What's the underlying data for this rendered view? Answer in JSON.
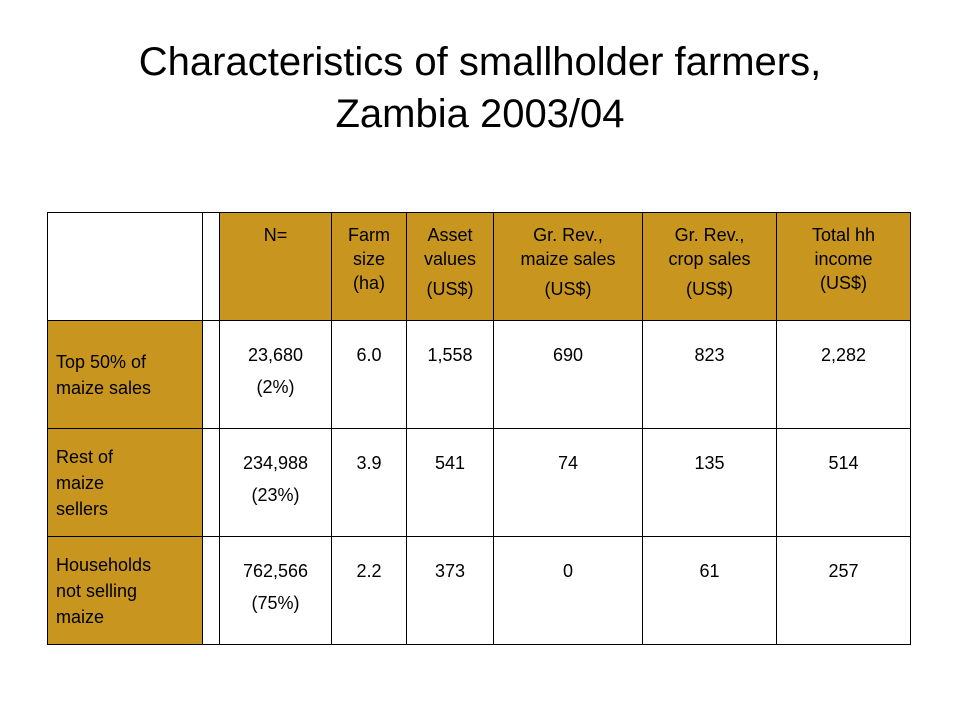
{
  "slide": {
    "title_line1": "Characteristics of smallholder farmers,",
    "title_line2": "Zambia 2003/04"
  },
  "table": {
    "headers": {
      "n": "N=",
      "farm_size": [
        "Farm",
        "size",
        "(ha)"
      ],
      "asset_values": [
        "Asset",
        "values",
        "(US$)"
      ],
      "gr_rev_maize": [
        "Gr. Rev.,",
        "maize sales",
        "(US$)"
      ],
      "gr_rev_crop": [
        "Gr. Rev.,",
        "crop sales",
        "(US$)"
      ],
      "total_hh_income": [
        "Total hh",
        "income",
        "(US$)"
      ]
    },
    "rows": [
      {
        "label": [
          "Top 50% of",
          "maize sales"
        ],
        "n": "23,680",
        "n_pct": "(2%)",
        "farm_size": "6.0",
        "asset_values": "1,558",
        "gr_rev_maize": "690",
        "gr_rev_crop": "823",
        "total_hh_income": "2,282"
      },
      {
        "label": [
          "Rest of",
          "maize",
          "sellers"
        ],
        "n": "234,988",
        "n_pct": "(23%)",
        "farm_size": "3.9",
        "asset_values": "541",
        "gr_rev_maize": "74",
        "gr_rev_crop": "135",
        "total_hh_income": "514"
      },
      {
        "label": [
          "Households",
          "not selling",
          "maize"
        ],
        "n": "762,566",
        "n_pct": "(75%)",
        "farm_size": "2.2",
        "asset_values": "373",
        "gr_rev_maize": "0",
        "gr_rev_crop": "61",
        "total_hh_income": "257"
      }
    ]
  },
  "colors": {
    "header_fill": "#c8961e",
    "border": "#000000",
    "background": "#ffffff"
  }
}
